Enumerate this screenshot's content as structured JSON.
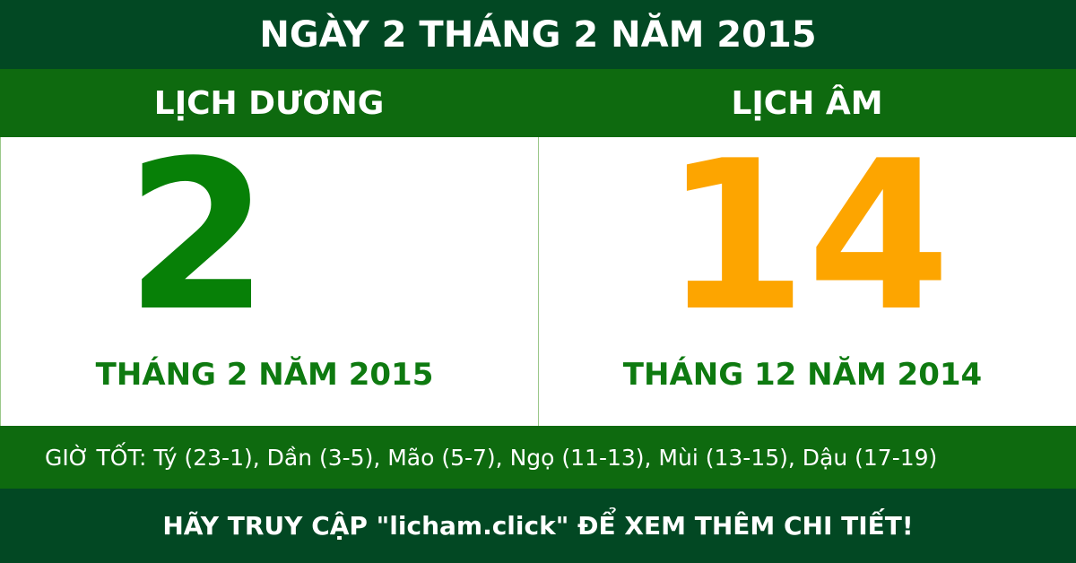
{
  "title": "NGÀY 2 THÁNG 2 NĂM 2015",
  "solar": {
    "heading": "LỊCH DƯƠNG",
    "day": "2",
    "month_year": "THÁNG 2 NĂM 2015"
  },
  "lunar": {
    "heading": "LỊCH ÂM",
    "day": "14",
    "month_year": "THÁNG 12 NĂM 2014"
  },
  "good_hours": "GIỜ TỐT: Tý (23-1), Dần (3-5), Mão (5-7), Ngọ (11-13), Mùi (13-15), Dậu (17-19)",
  "footer": "HÃY TRUY CẬP \"licham.click\" ĐỂ XEM THÊM CHI TIẾT!",
  "colors": {
    "dark_green": "#024823",
    "green": "#0e6a0f",
    "solar_day": "#078007",
    "lunar_day": "#fda500"
  }
}
